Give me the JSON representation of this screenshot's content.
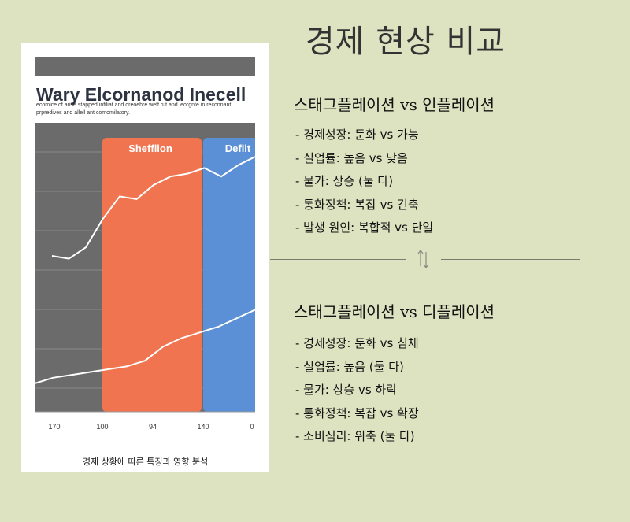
{
  "page": {
    "title": "경제 현상 비교"
  },
  "image_card": {
    "chart_data": {
      "type": "line",
      "title": "Wary Elcornanod Inecell",
      "subtitle_lines": [
        "ecomice of arise stapped infiliat and oreoehre weff rut and leorgnte in reconnant",
        "prpredives and allell ant comomilatory."
      ],
      "band_labels": [
        "Shefflion",
        "Deflit"
      ],
      "band_colors": [
        "#f07450",
        "#5b8fd6"
      ],
      "x_tick_labels": [
        "170",
        "100",
        "94",
        "140",
        "0"
      ],
      "series": [
        {
          "values": [
            55,
            54,
            58,
            68,
            76,
            75,
            80,
            83,
            84,
            86,
            83,
            87,
            90
          ]
        },
        {
          "values": [
            10,
            12,
            13,
            14,
            15,
            16,
            18,
            23,
            26,
            28,
            30,
            33,
            36
          ]
        }
      ],
      "grid": true
    },
    "caption": "경제 상황에 따른 특징과 영향 분석"
  },
  "sections": [
    {
      "heading": "스태그플레이션 vs 인플레이션",
      "items": [
        "- 경제성장: 둔화 vs 가능",
        "- 실업률: 높음 vs 낮음",
        "- 물가: 상승 (둘 다)",
        "- 통화정책: 복잡 vs 긴축",
        "- 발생 원인: 복합적 vs 단일"
      ]
    },
    {
      "heading": "스태그플레이션 vs 디플레이션",
      "items": [
        "- 경제성장: 둔화 vs 침체",
        "- 실업률: 높음 (둘 다)",
        "- 물가: 상승 vs 하락",
        "- 통화정책: 복잡 vs 확장",
        "- 소비심리: 위축 (둘 다)"
      ]
    }
  ],
  "divider": {
    "icon": "swap-arrows-icon"
  }
}
